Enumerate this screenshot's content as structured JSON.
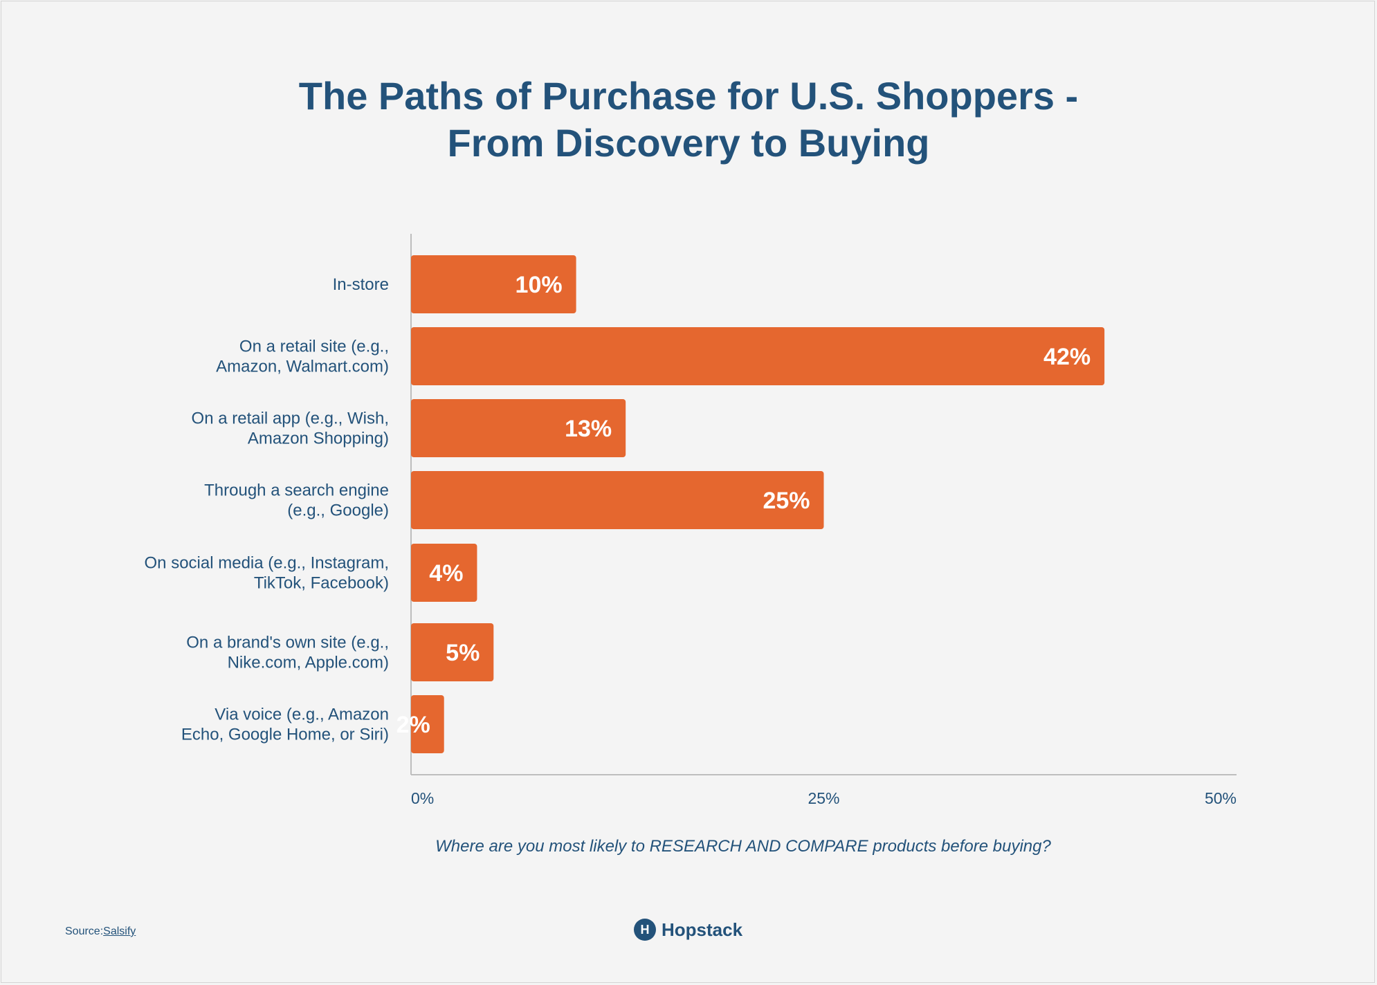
{
  "title": {
    "line1": "The Paths of Purchase for U.S. Shoppers -",
    "line2": "From Discovery to Buying"
  },
  "chart_data": {
    "type": "bar",
    "orientation": "horizontal",
    "categories": [
      [
        "In-store"
      ],
      [
        "On a retail site (e.g.,",
        "Amazon, Walmart.com)"
      ],
      [
        "On a retail app (e.g., Wish,",
        "Amazon Shopping)"
      ],
      [
        "Through a search engine",
        "(e.g., Google)"
      ],
      [
        "On social media (e.g., Instagram,",
        "TikTok, Facebook)"
      ],
      [
        "On a brand's own site (e.g.,",
        "Nike.com, Apple.com)"
      ],
      [
        "Via voice (e.g., Amazon",
        "Echo, Google Home, or Siri)"
      ]
    ],
    "values": [
      10,
      42,
      13,
      25,
      4,
      5,
      2
    ],
    "value_labels": [
      "10%",
      "42%",
      "13%",
      "25%",
      "4%",
      "5%",
      "2%"
    ],
    "xlim": [
      0,
      50
    ],
    "xticks": [
      0,
      25,
      50
    ],
    "xtick_labels": [
      "0%",
      "25%",
      "50%"
    ],
    "xlabel": "Where are you most likely to RESEARCH AND COMPARE products before buying?",
    "bar_color": "#e5672f",
    "axis_color": "#bdbdbd"
  },
  "footer": {
    "source_prefix": "Source:",
    "source_link": "Salsify",
    "brand_mark": "H",
    "brand_name": "Hopstack"
  }
}
